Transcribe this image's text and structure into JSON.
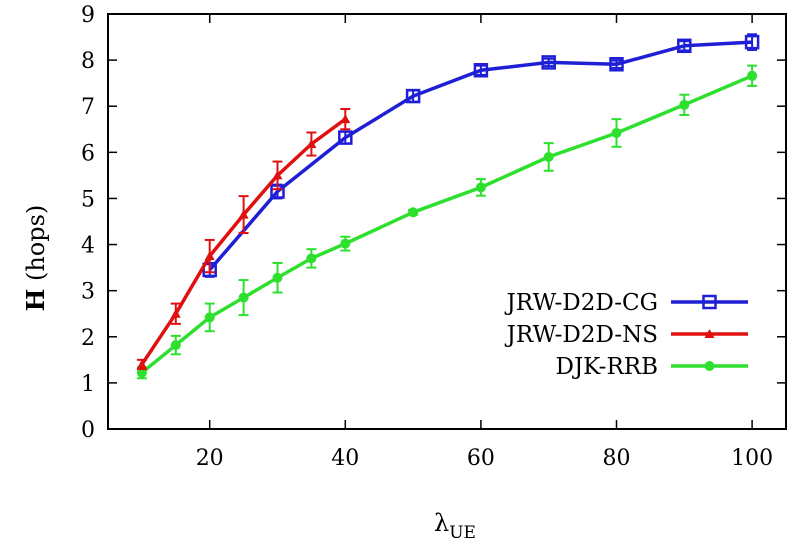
{
  "chart_data": {
    "type": "line",
    "xlabel": {
      "symbol": "λ",
      "subscript": "UE"
    },
    "ylabel": {
      "bold": "H",
      "rest": " (hops)"
    },
    "xlim": [
      5,
      105
    ],
    "ylim": [
      0,
      9
    ],
    "xticks": [
      20,
      40,
      60,
      80,
      100
    ],
    "yticks": [
      0,
      1,
      2,
      3,
      4,
      5,
      6,
      7,
      8,
      9
    ],
    "grid": false,
    "legend_position": "bottom-right",
    "series": [
      {
        "name": "JRW-D2D-CG",
        "color": "#1f1fd6",
        "marker": "square",
        "x": [
          20,
          30,
          40,
          50,
          60,
          70,
          80,
          90,
          100
        ],
        "y": [
          3.45,
          5.15,
          6.32,
          7.22,
          7.78,
          7.95,
          7.91,
          8.31,
          8.39
        ],
        "err": [
          0.15,
          0.15,
          0.13,
          0.12,
          0.1,
          0.08,
          0.08,
          0.1,
          0.17
        ]
      },
      {
        "name": "JRW-D2D-NS",
        "color": "#e01010",
        "marker": "triangle",
        "x": [
          10,
          15,
          20,
          25,
          30,
          35,
          40
        ],
        "y": [
          1.4,
          2.5,
          3.75,
          4.65,
          5.5,
          6.18,
          6.72
        ],
        "err": [
          0.1,
          0.22,
          0.35,
          0.4,
          0.3,
          0.25,
          0.22
        ]
      },
      {
        "name": "DJK-RRB",
        "color": "#2ee02e",
        "marker": "circle",
        "x": [
          10,
          15,
          20,
          25,
          30,
          35,
          40,
          50,
          60,
          70,
          80,
          90,
          100
        ],
        "y": [
          1.22,
          1.82,
          2.42,
          2.85,
          3.28,
          3.7,
          4.02,
          4.7,
          5.24,
          5.9,
          6.42,
          7.03,
          7.66
        ],
        "err": [
          0.12,
          0.2,
          0.3,
          0.38,
          0.32,
          0.2,
          0.15,
          0.05,
          0.18,
          0.3,
          0.3,
          0.22,
          0.22
        ]
      }
    ]
  }
}
